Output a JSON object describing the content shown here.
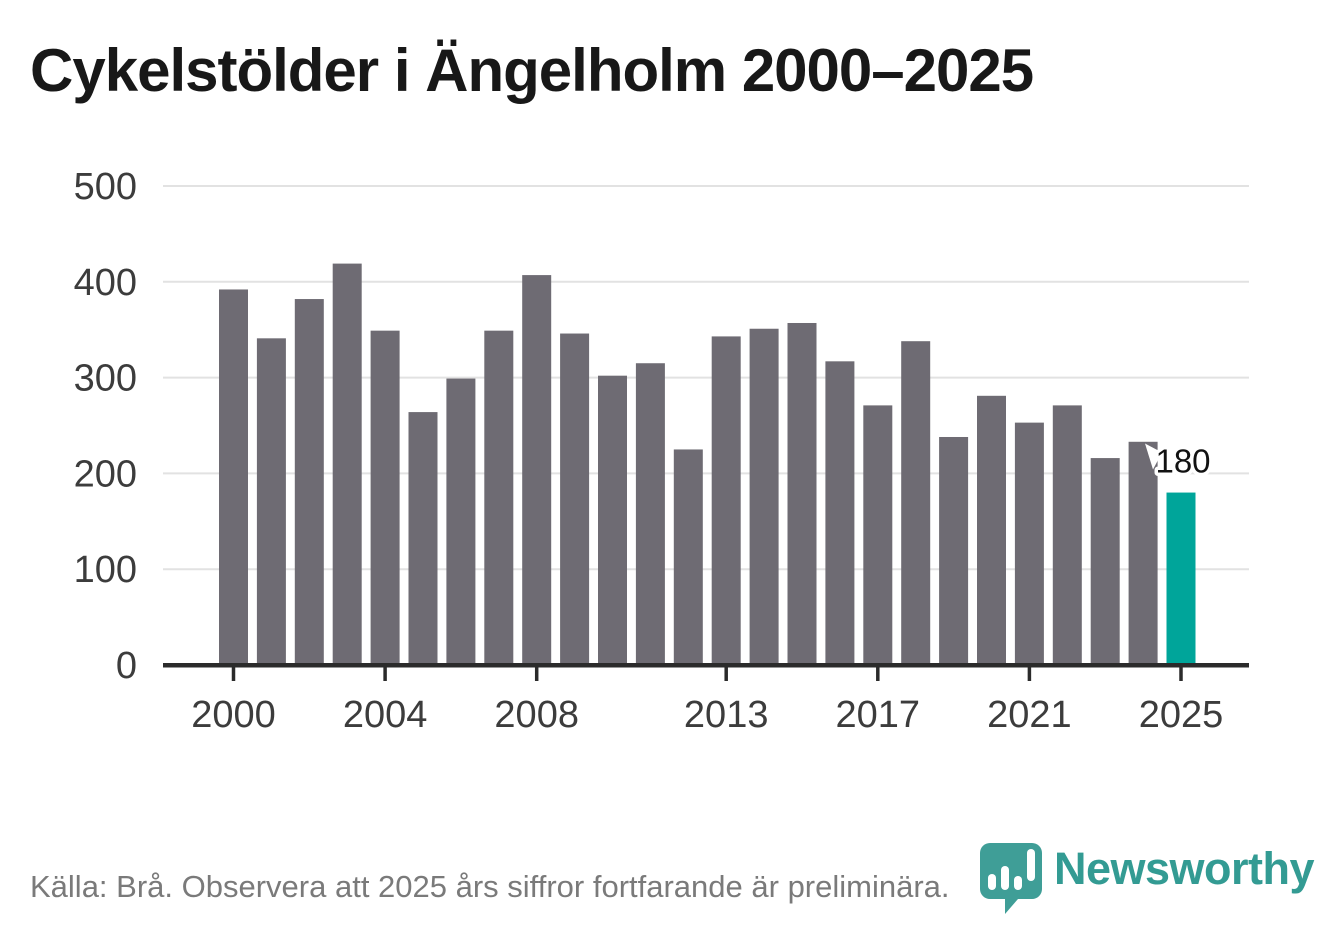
{
  "header": {
    "title": "Cykelstölder i Ängelholm 2000–2025"
  },
  "chart_data": {
    "type": "bar",
    "title": "Cykelstölder i Ängelholm 2000–2025",
    "categories": [
      2000,
      2001,
      2002,
      2003,
      2004,
      2005,
      2006,
      2007,
      2008,
      2009,
      2010,
      2011,
      2012,
      2013,
      2014,
      2015,
      2016,
      2017,
      2018,
      2019,
      2020,
      2021,
      2022,
      2023,
      2024,
      2025
    ],
    "values": [
      392,
      341,
      382,
      419,
      349,
      264,
      299,
      349,
      407,
      346,
      302,
      315,
      225,
      343,
      351,
      357,
      317,
      271,
      338,
      238,
      281,
      253,
      271,
      216,
      233,
      180
    ],
    "ylim": [
      0,
      500
    ],
    "y_ticks": [
      0,
      100,
      200,
      300,
      400,
      500
    ],
    "x_tick_labels": [
      "2000",
      "2004",
      "2008",
      "2013",
      "2017",
      "2021",
      "2025"
    ],
    "grid": "horizontal",
    "legend": "none",
    "bar_color": "#6E6B73",
    "axis_color": "#2B2B2B",
    "grid_color": "#E2E2E2",
    "tick_label_color": "#3C3C3C",
    "highlight": {
      "index": 25,
      "year": 2025,
      "value": 180,
      "label": "180",
      "color": "#00A59A"
    }
  },
  "footer": {
    "source_note": "Källa: Brå. Observera att 2025 års siffror fortfarande är preliminära.",
    "brand": "Newsworthy",
    "brand_color": "#339B93",
    "logo_color": "#3F9E97"
  },
  "icons": {
    "logo": "newsworthy-speech-bubble-bar-chart-icon"
  }
}
